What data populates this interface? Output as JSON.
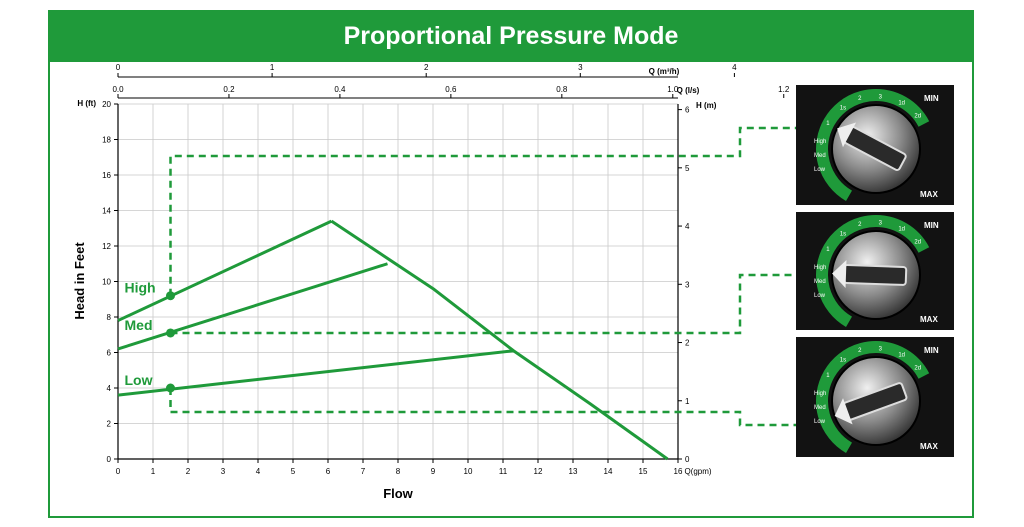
{
  "banner": {
    "title": "Proportional Pressure Mode"
  },
  "colors": {
    "brand_green": "#1f9a3a",
    "curve_green": "#1f9a3a",
    "grid": "#c8c8c8",
    "axis": "#000000",
    "dial_bg": "#121212"
  },
  "chart_data": {
    "type": "line",
    "x": {
      "label": "Flow",
      "unit_label": "Q(gpm)",
      "range": [
        0,
        16
      ],
      "ticks": [
        0,
        1,
        2,
        3,
        4,
        5,
        6,
        7,
        8,
        9,
        10,
        11,
        12,
        13,
        14,
        15,
        16
      ]
    },
    "y_left": {
      "label": "Head in Feet",
      "unit_label": "H (ft)",
      "range": [
        0,
        20
      ],
      "ticks": [
        0,
        2,
        4,
        6,
        8,
        10,
        12,
        14,
        16,
        18,
        20
      ]
    },
    "y_right": {
      "unit_label": "H (m)",
      "range": [
        0,
        6.096
      ],
      "ticks": [
        0,
        1,
        2,
        3,
        4,
        5,
        6
      ]
    },
    "x_top1": {
      "unit_label": "Q (m³/h)",
      "range": [
        0,
        3.634
      ],
      "ticks": [
        0,
        1,
        2,
        3,
        4
      ]
    },
    "x_top2": {
      "unit_label": "Q (l/s)",
      "range": [
        0,
        1.0094
      ],
      "ticks": [
        "0.0",
        "0.2",
        "0.4",
        "0.6",
        "0.8",
        "1.0",
        "1.2"
      ]
    },
    "series": [
      {
        "name": "High",
        "values": [
          [
            0,
            7.8
          ],
          [
            6.1,
            13.4
          ]
        ]
      },
      {
        "name": "Med",
        "values": [
          [
            0,
            6.2
          ],
          [
            7.7,
            11.0
          ]
        ]
      },
      {
        "name": "Low",
        "values": [
          [
            0,
            3.6
          ],
          [
            11.3,
            6.1
          ]
        ]
      },
      {
        "values": [
          [
            6.1,
            13.4
          ],
          [
            9.0,
            9.6
          ],
          [
            11.3,
            6.1
          ],
          [
            13.5,
            3.1
          ],
          [
            15.7,
            0
          ]
        ]
      }
    ],
    "setpoints": [
      {
        "label": "High",
        "x": 1.5,
        "y": 9.2
      },
      {
        "label": "Med",
        "x": 1.5,
        "y": 7.1
      },
      {
        "label": "Low",
        "x": 1.5,
        "y": 4.0
      }
    ],
    "grid": true
  },
  "dials": [
    {
      "mode": "High",
      "ticks": [
        "1",
        "1s",
        "2",
        "3",
        "1d",
        "2d"
      ],
      "min_label": "MIN",
      "max_label": "MAX",
      "scale_labels": [
        "Low",
        "Med",
        "High"
      ]
    },
    {
      "mode": "Med",
      "ticks": [
        "1",
        "1s",
        "2",
        "3",
        "1d",
        "2d"
      ],
      "min_label": "MIN",
      "max_label": "MAX",
      "scale_labels": [
        "Low",
        "Med",
        "High"
      ]
    },
    {
      "mode": "Low",
      "ticks": [
        "1",
        "1s",
        "2",
        "3",
        "1d",
        "2d"
      ],
      "min_label": "MIN",
      "max_label": "MAX",
      "scale_labels": [
        "Low",
        "Med",
        "High"
      ]
    }
  ]
}
